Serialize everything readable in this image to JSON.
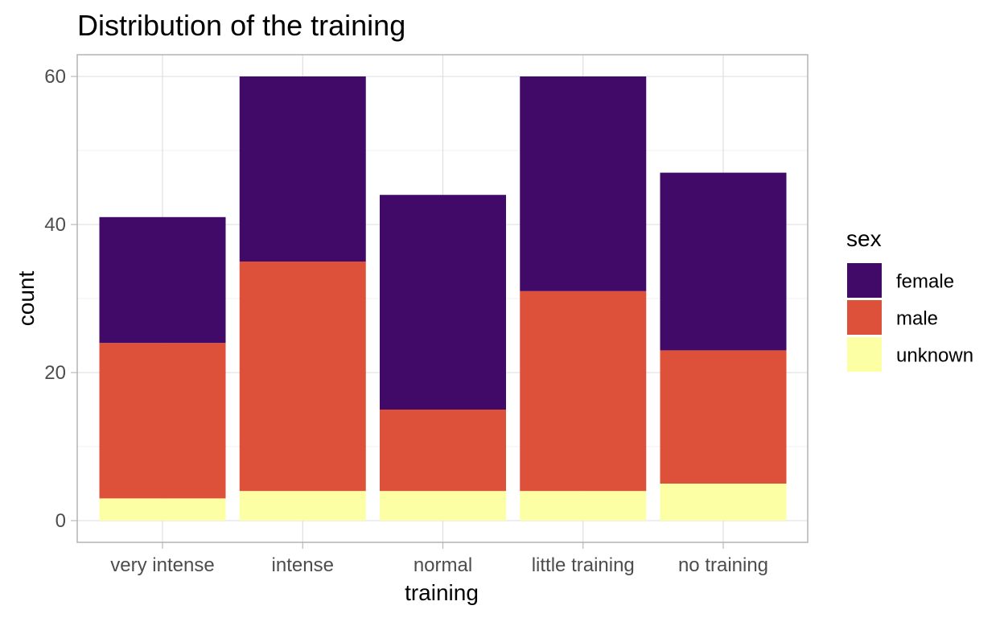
{
  "chart_data": {
    "type": "bar",
    "stacked": true,
    "title": "Distribution of the training",
    "xlabel": "training",
    "ylabel": "count",
    "categories": [
      "very intense",
      "intense",
      "normal",
      "little training",
      "no training"
    ],
    "series": [
      {
        "name": "female",
        "color": "#420A68",
        "values": [
          17,
          25,
          29,
          29,
          24
        ]
      },
      {
        "name": "male",
        "color": "#DD513A",
        "values": [
          21,
          31,
          11,
          27,
          18
        ]
      },
      {
        "name": "unknown",
        "color": "#FCFFA4",
        "values": [
          3,
          4,
          4,
          4,
          5
        ]
      }
    ],
    "stack_order_bottom_to_top": [
      "unknown",
      "male",
      "female"
    ],
    "ylim": [
      0,
      62.5
    ],
    "yticks": [
      0,
      20,
      40,
      60
    ],
    "y_minor_ticks": [
      10,
      30,
      50
    ],
    "legend": {
      "title": "sex",
      "position": "right",
      "entries": [
        "female",
        "male",
        "unknown"
      ]
    },
    "grid": true,
    "theme": "light"
  }
}
